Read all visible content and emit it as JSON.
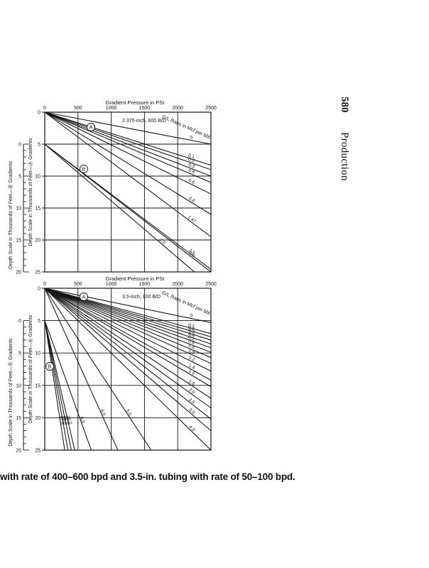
{
  "page": {
    "page_number": "580",
    "section_title": "Production",
    "caption": "with rate of 400–600 bpd and 3.5-in. tubing with rate of 50–100 bpd."
  },
  "chart_data": [
    {
      "type": "line",
      "title": "2.375-inch, 600 B/D",
      "xlabel": "Gradient Pressure in PSI",
      "ylabel": "Depth Scale in Thousands of Feet—Ⓐ Gradients",
      "ylabel_outer": "Depth Scale in Thousands of Feet—Ⓑ Gradients",
      "xlim": [
        0,
        2500
      ],
      "ylim": [
        0,
        25
      ],
      "x_ticks": [
        "0",
        "500",
        "1000",
        "1500",
        "2000",
        "2500"
      ],
      "y_ticks": [
        "0",
        "5",
        "10",
        "15",
        "20",
        "25"
      ],
      "y_ticks_outer": [
        "0",
        "5",
        "10",
        "15",
        "20"
      ],
      "legend_title": "G/L Ratio in Mcf per bbl.",
      "group_labels": [
        "A",
        "B"
      ],
      "series": [
        {
          "name": "0",
          "x": [
            0,
            2500
          ],
          "y": [
            0,
            5.0
          ]
        },
        {
          "name": "0.1",
          "x": [
            0,
            2500
          ],
          "y": [
            0,
            8.3
          ]
        },
        {
          "name": "0.2",
          "x": [
            0,
            2500
          ],
          "y": [
            0,
            9.0
          ]
        },
        {
          "name": "0.3",
          "x": [
            0,
            2500
          ],
          "y": [
            0,
            10.0
          ]
        },
        {
          "name": "0.4",
          "x": [
            0,
            2500
          ],
          "y": [
            0,
            11.0
          ]
        },
        {
          "name": "0.6",
          "x": [
            0,
            2500
          ],
          "y": [
            0,
            12.8
          ]
        },
        {
          "name": "0.8",
          "x": [
            0,
            2500
          ],
          "y": [
            0,
            16.0
          ]
        },
        {
          "name": "1.47",
          "x": [
            0,
            2500
          ],
          "y": [
            0,
            19.5
          ]
        },
        {
          "name": "3.0",
          "x": [
            0,
            2500
          ],
          "y": [
            5.0,
            25.0
          ]
        },
        {
          "name": "2.5",
          "x": [
            0,
            2500
          ],
          "y": [
            5.0,
            24.6
          ]
        },
        {
          "name": "2.0",
          "x": [
            0,
            2250
          ],
          "y": [
            5.0,
            25.0
          ]
        }
      ]
    },
    {
      "type": "line",
      "title": "3.5-inch, 100 B/D",
      "xlabel": "Gradient Pressure in PSI",
      "ylabel": "Depth Scale in Thousands of Feet—Ⓐ Gradients",
      "ylabel_outer": "Depth Scale in Thousands of Feet—Ⓑ Gradients",
      "xlim": [
        0,
        2500
      ],
      "ylim": [
        0,
        25
      ],
      "x_ticks": [
        "0",
        "500",
        "1000",
        "1500",
        "2000",
        "2500"
      ],
      "y_ticks": [
        "0",
        "5",
        "10",
        "15",
        "20",
        "25"
      ],
      "y_ticks_outer": [
        "0",
        "5",
        "10",
        "15",
        "20"
      ],
      "legend_title": "G/L Ratio in Mcf per bbl.",
      "group_labels": [
        "A",
        "B"
      ],
      "series": [
        {
          "name": "0",
          "x": [
            0,
            2500
          ],
          "y": [
            0,
            5.3
          ]
        },
        {
          "name": "0.1",
          "x": [
            0,
            2500
          ],
          "y": [
            0,
            7.0
          ]
        },
        {
          "name": "0.2",
          "x": [
            0,
            2500
          ],
          "y": [
            0,
            7.5
          ]
        },
        {
          "name": "0.3",
          "x": [
            0,
            2500
          ],
          "y": [
            0,
            8.0
          ]
        },
        {
          "name": "0.4",
          "x": [
            0,
            2500
          ],
          "y": [
            0,
            8.6
          ]
        },
        {
          "name": "0.5",
          "x": [
            0,
            2500
          ],
          "y": [
            0,
            9.2
          ]
        },
        {
          "name": "0.6",
          "x": [
            0,
            2500
          ],
          "y": [
            0,
            9.9
          ]
        },
        {
          "name": "0.8",
          "x": [
            0,
            2500
          ],
          "y": [
            0,
            10.7
          ]
        },
        {
          "name": "1.0",
          "x": [
            0,
            2500
          ],
          "y": [
            0,
            11.6
          ]
        },
        {
          "name": "1.2",
          "x": [
            0,
            2500
          ],
          "y": [
            0,
            12.8
          ]
        },
        {
          "name": "1.4",
          "x": [
            0,
            2500
          ],
          "y": [
            0,
            14.2
          ]
        },
        {
          "name": "1.6",
          "x": [
            0,
            2500
          ],
          "y": [
            0,
            15.2
          ]
        },
        {
          "name": "1.8",
          "x": [
            0,
            2500
          ],
          "y": [
            0,
            17.0
          ]
        },
        {
          "name": "2.0",
          "x": [
            0,
            2500
          ],
          "y": [
            0,
            18.5
          ]
        },
        {
          "name": "2.5",
          "x": [
            0,
            2500
          ],
          "y": [
            0,
            20.2
          ]
        },
        {
          "name": "3.0",
          "x": [
            0,
            2500
          ],
          "y": [
            0,
            22.0
          ]
        },
        {
          "name": "4.0",
          "x": [
            0,
            2500
          ],
          "y": [
            0,
            25.0
          ]
        },
        {
          "name": "5.0",
          "x": [
            0,
            1600
          ],
          "y": [
            0,
            25.0
          ]
        },
        {
          "name": "6.0",
          "x": [
            0,
            1100
          ],
          "y": [
            0,
            25.0
          ]
        },
        {
          "name": "8.0",
          "x": [
            0,
            700
          ],
          "y": [
            5.0,
            25.0
          ]
        },
        {
          "name": "10.0",
          "x": [
            0,
            450
          ],
          "y": [
            5.0,
            25.0
          ]
        },
        {
          "name": "12.5",
          "x": [
            0,
            400
          ],
          "y": [
            5.0,
            25.0
          ]
        },
        {
          "name": "15.0",
          "x": [
            0,
            350
          ],
          "y": [
            5.0,
            25.0
          ]
        },
        {
          "name": "17.5",
          "x": [
            0,
            300
          ],
          "y": [
            5.0,
            25.0
          ]
        }
      ]
    }
  ]
}
